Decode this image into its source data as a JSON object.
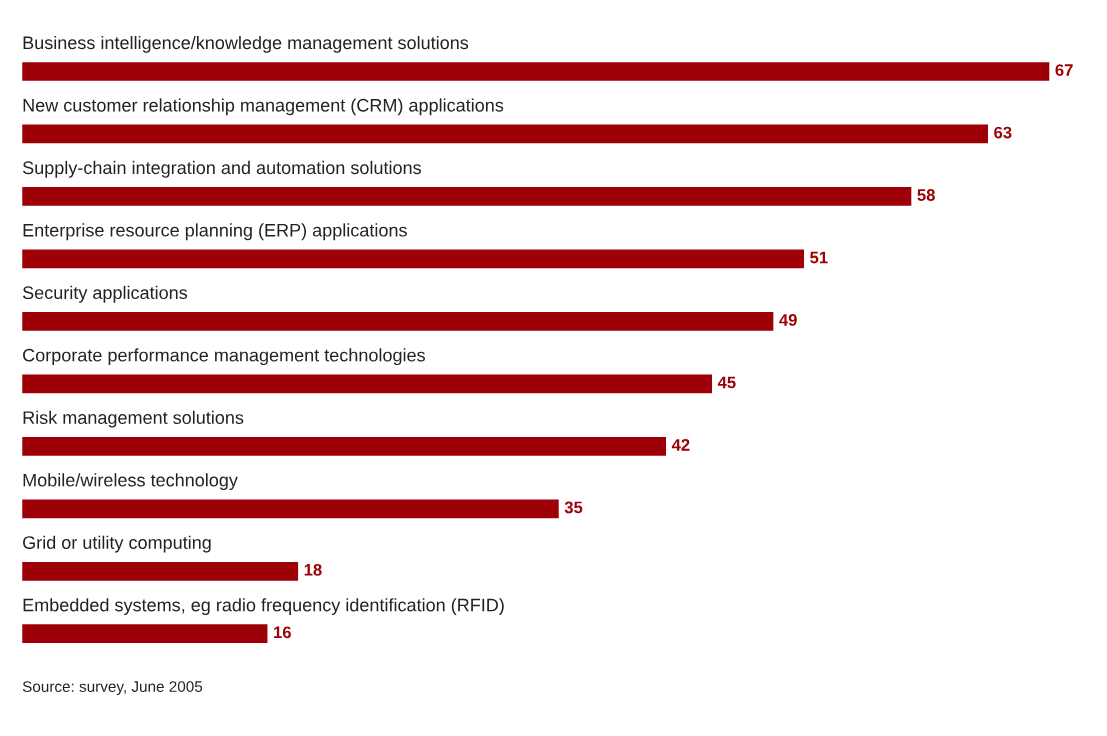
{
  "chart_data": {
    "type": "bar",
    "orientation": "horizontal",
    "categories": [
      "Business intelligence/knowledge management solutions",
      "New customer relationship management (CRM) applications",
      "Supply-chain integration and automation solutions",
      "Enterprise resource planning (ERP) applications",
      "Security applications",
      "Corporate performance management technologies",
      "Risk management solutions",
      "Mobile/wireless technology",
      "Grid or utility computing",
      "Embedded systems, eg radio frequency identification (RFID)"
    ],
    "values": [
      67,
      63,
      58,
      51,
      49,
      45,
      42,
      35,
      18,
      16
    ],
    "color": "#9e0008",
    "data_labels": true,
    "annotations": [
      "Source: survey, June 2005"
    ]
  }
}
